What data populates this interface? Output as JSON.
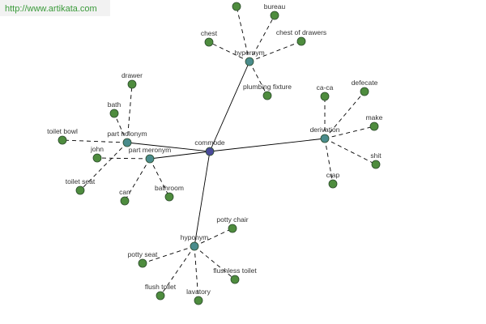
{
  "header": {
    "url": "http://www.artikata.com"
  },
  "graph": {
    "center": {
      "label": "commode"
    },
    "hubs": [
      {
        "label": "hypernym",
        "leaves": [
          "bureau",
          "chest of drawers",
          "chest",
          "plumbing fixture"
        ]
      },
      {
        "label": "part holonym",
        "leaves": [
          "drawer",
          "bath",
          "toilet bowl",
          "toilet seat"
        ]
      },
      {
        "label": "part meronym",
        "leaves": [
          "john",
          "can",
          "bathroom"
        ]
      },
      {
        "label": "derivation",
        "leaves": [
          "ca-ca",
          "defecate",
          "make",
          "shit",
          "crap"
        ]
      },
      {
        "label": "hyponym",
        "leaves": [
          "potty chair",
          "potty seat",
          "flush toilet",
          "lavatory",
          "flushless toilet"
        ]
      }
    ]
  }
}
